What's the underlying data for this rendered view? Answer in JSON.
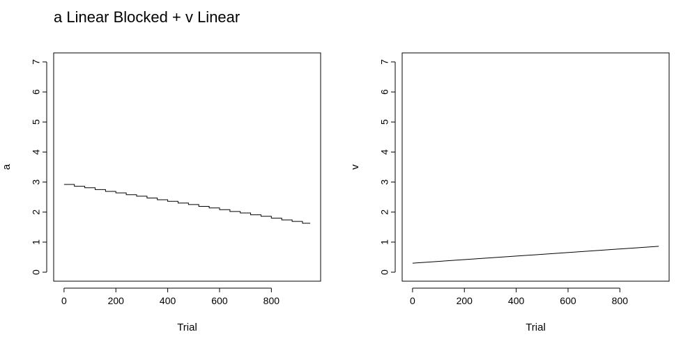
{
  "title": "a Linear Blocked + v Linear",
  "chart_data": [
    {
      "type": "line",
      "xlabel": "Trial",
      "ylabel": "a",
      "xlim": [
        -40,
        990
      ],
      "ylim": [
        -0.3,
        7.3
      ],
      "x_ticks": [
        0,
        200,
        400,
        600,
        800
      ],
      "y_ticks": [
        0,
        1,
        2,
        3,
        4,
        5,
        6,
        7
      ],
      "step": true,
      "series": [
        {
          "x": [
            0,
            40,
            80,
            120,
            160,
            200,
            240,
            280,
            320,
            360,
            400,
            440,
            480,
            520,
            560,
            600,
            640,
            680,
            720,
            760,
            800,
            840,
            880,
            920,
            950
          ],
          "y": [
            2.92,
            2.86,
            2.81,
            2.75,
            2.69,
            2.64,
            2.58,
            2.53,
            2.47,
            2.41,
            2.36,
            2.3,
            2.25,
            2.19,
            2.14,
            2.08,
            2.02,
            1.97,
            1.91,
            1.86,
            1.8,
            1.74,
            1.69,
            1.63,
            1.63
          ]
        }
      ]
    },
    {
      "type": "line",
      "xlabel": "Trial",
      "ylabel": "v",
      "xlim": [
        -40,
        990
      ],
      "ylim": [
        -0.3,
        7.3
      ],
      "x_ticks": [
        0,
        200,
        400,
        600,
        800
      ],
      "y_ticks": [
        0,
        1,
        2,
        3,
        4,
        5,
        6,
        7
      ],
      "step": false,
      "series": [
        {
          "x": [
            0,
            950
          ],
          "y": [
            0.3,
            0.86
          ]
        }
      ]
    }
  ]
}
